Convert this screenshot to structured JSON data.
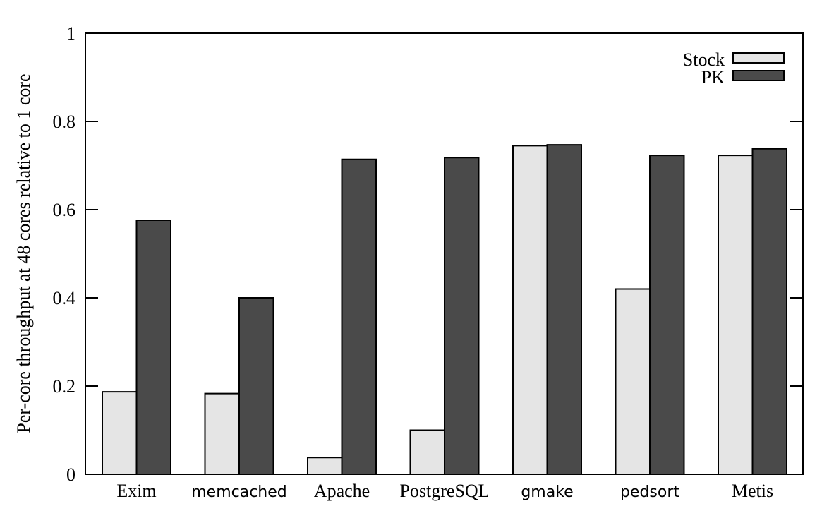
{
  "chart_data": {
    "type": "bar",
    "title": "",
    "xlabel": "",
    "ylabel": "Per-core throughput at 48 cores relative to 1 core",
    "ylim": [
      0,
      1
    ],
    "yticks": [
      "0",
      "0.2",
      "0.4",
      "0.6",
      "0.8",
      "1"
    ],
    "categories": [
      "Exim",
      "memcached",
      "Apache",
      "PostgreSQL",
      "gmake",
      "pedsort",
      "Metis"
    ],
    "series": [
      {
        "name": "Stock",
        "color": "#e5e5e5",
        "values": [
          0.187,
          0.183,
          0.038,
          0.1,
          0.745,
          0.42,
          0.723
        ]
      },
      {
        "name": "PK",
        "color": "#4a4a4a",
        "values": [
          0.576,
          0.4,
          0.714,
          0.718,
          0.747,
          0.723,
          0.738
        ]
      }
    ],
    "grid": false,
    "legend": "top-right"
  }
}
